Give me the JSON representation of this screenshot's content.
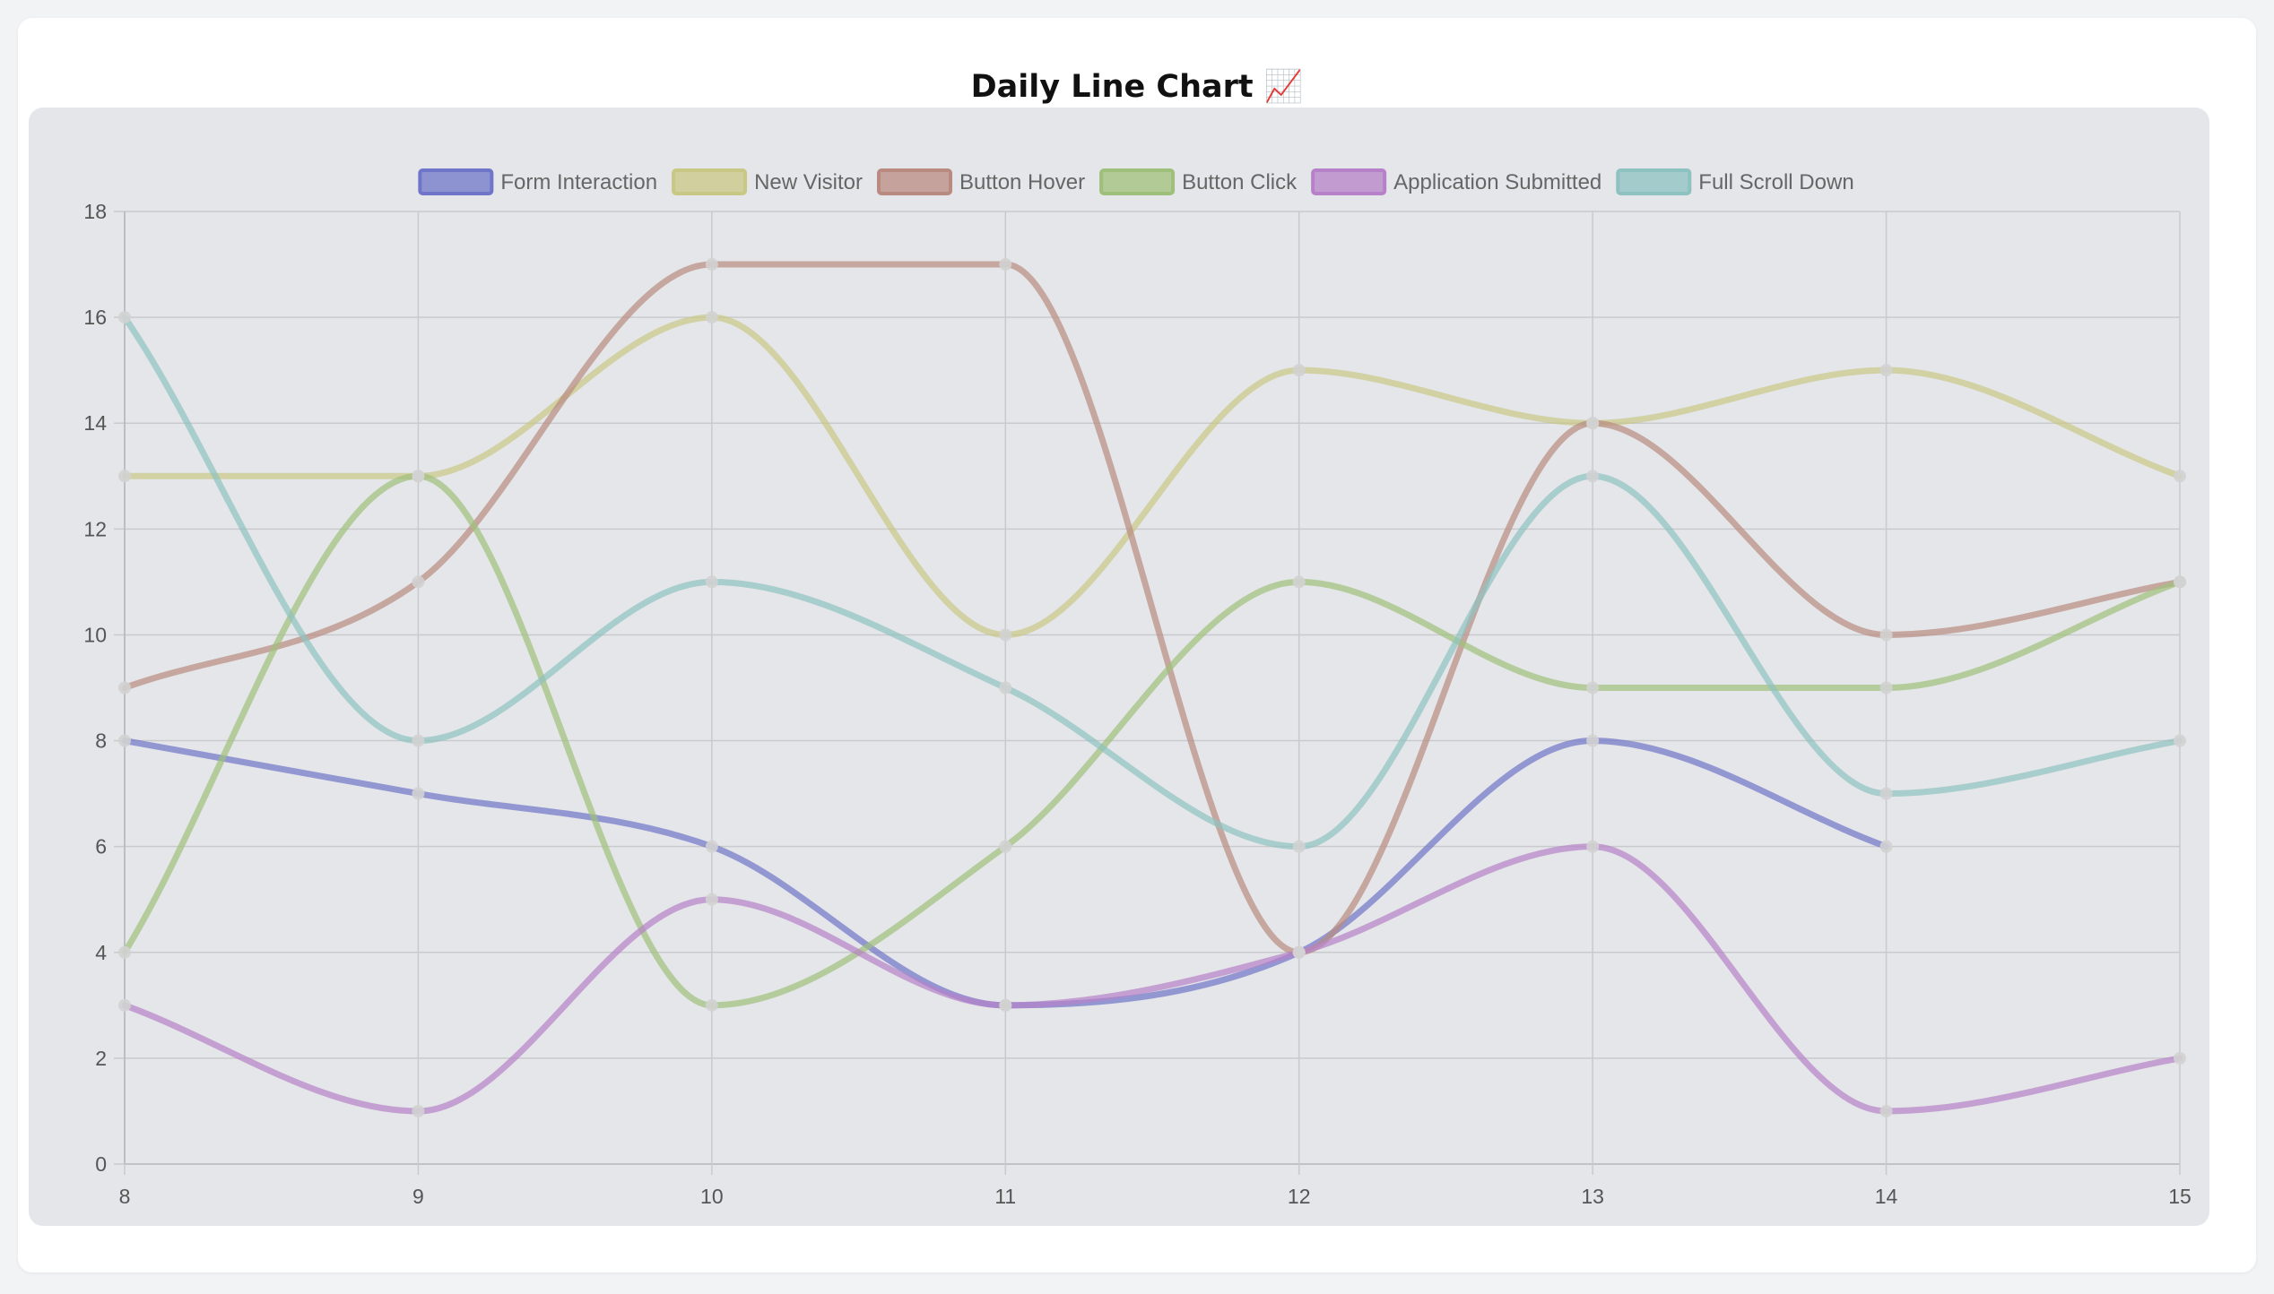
{
  "title": "Daily Line Chart 📈",
  "chart_data": {
    "type": "line",
    "x": [
      8,
      9,
      10,
      11,
      12,
      13,
      14,
      15
    ],
    "ylim": [
      0,
      18
    ],
    "yticks": [
      0,
      2,
      4,
      6,
      8,
      10,
      12,
      14,
      16,
      18
    ],
    "grid": true,
    "legend_position": "top",
    "smooth": true,
    "series": [
      {
        "name": "Form Interaction",
        "color": "#6f75c8",
        "values": [
          8,
          7,
          6,
          3,
          4,
          8,
          6,
          null
        ]
      },
      {
        "name": "New Visitor",
        "color": "#c9c784",
        "values": [
          13,
          13,
          16,
          10,
          15,
          14,
          15,
          13
        ]
      },
      {
        "name": "Button Hover",
        "color": "#b98b80",
        "values": [
          9,
          11,
          17,
          17,
          4,
          14,
          10,
          11
        ]
      },
      {
        "name": "Button Click",
        "color": "#9fc07a",
        "values": [
          4,
          13,
          3,
          6,
          11,
          9,
          9,
          11
        ]
      },
      {
        "name": "Application Submitted",
        "color": "#b681c8",
        "values": [
          3,
          1,
          5,
          3,
          4,
          6,
          1,
          2
        ]
      },
      {
        "name": "Full Scroll Down",
        "color": "#8ec2c0",
        "values": [
          16,
          8,
          11,
          9,
          6,
          13,
          7,
          8
        ]
      }
    ]
  }
}
